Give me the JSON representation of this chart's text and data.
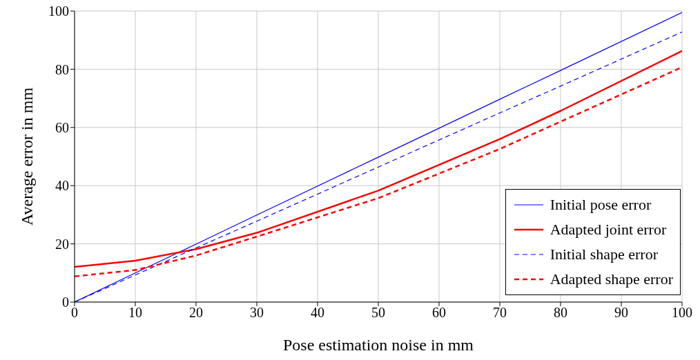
{
  "chart_data": {
    "type": "line",
    "xlabel": "Pose estimation noise in mm",
    "ylabel": "Average error in mm",
    "x": [
      0,
      10,
      20,
      30,
      50,
      70,
      80,
      100
    ],
    "series": [
      {
        "name": "Initial pose error",
        "color": "#0000ff",
        "line_style": "solid",
        "values": [
          0,
          10,
          19.9,
          29.9,
          49.8,
          69.7,
          79.6,
          99.5
        ]
      },
      {
        "name": "Adapted joint error",
        "color": "#ff0000",
        "line_style": "solid",
        "values": [
          12.1,
          14.2,
          18.2,
          23.8,
          38.3,
          56,
          65.7,
          86.3
        ]
      },
      {
        "name": "Initial shape error",
        "color": "#0000ff",
        "line_style": "dashed",
        "values": [
          0,
          9.3,
          18.6,
          27.8,
          46.4,
          65,
          74.2,
          92.8
        ]
      },
      {
        "name": "Adapted shape error",
        "color": "#ff0000",
        "line_style": "dashed",
        "values": [
          8.8,
          11,
          16,
          22.5,
          35.7,
          52.6,
          62,
          80.7
        ]
      }
    ],
    "xlim": [
      0,
      100
    ],
    "xticks": [
      0,
      10,
      20,
      30,
      40,
      50,
      60,
      70,
      80,
      90,
      100
    ],
    "ylim": [
      0,
      100
    ],
    "yticks": [
      0,
      20,
      40,
      60,
      80,
      100
    ],
    "grid": true,
    "legend": "bottom right",
    "marker": "none"
  }
}
